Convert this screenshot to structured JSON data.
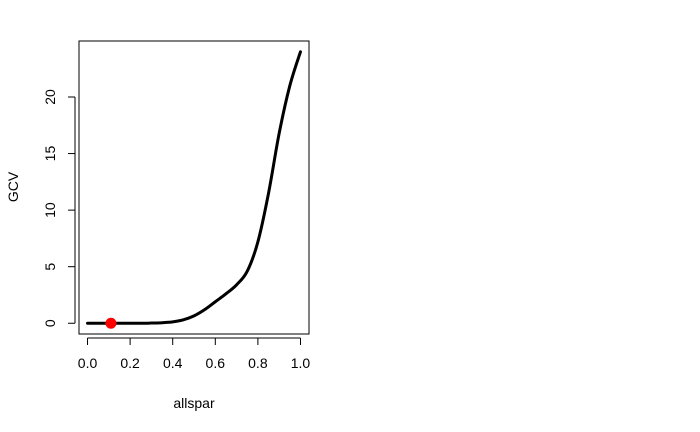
{
  "chart_data": {
    "type": "line",
    "title": "",
    "xlabel": "allspar",
    "ylabel": "GCV",
    "xlim": [
      -0.04,
      1.04
    ],
    "ylim": [
      -0.95,
      24.95
    ],
    "x_ticks": [
      0.0,
      0.2,
      0.4,
      0.6,
      0.8,
      1.0
    ],
    "x_tick_labels": [
      "0.0",
      "0.2",
      "0.4",
      "0.6",
      "0.8",
      "1.0"
    ],
    "y_ticks": [
      0,
      5,
      10,
      15,
      20
    ],
    "y_tick_labels": [
      "0",
      "5",
      "10",
      "15",
      "20"
    ],
    "grid": false,
    "legend": "none",
    "series": [
      {
        "color": "#000000",
        "x": [
          0.0,
          0.05,
          0.1,
          0.15,
          0.2,
          0.25,
          0.3,
          0.35,
          0.4,
          0.45,
          0.5,
          0.55,
          0.6,
          0.65,
          0.7,
          0.75,
          0.8,
          0.85,
          0.9,
          0.95,
          1.0
        ],
        "y": [
          0.0,
          0.0,
          0.0,
          0.0,
          0.0,
          0.0,
          0.02,
          0.05,
          0.12,
          0.3,
          0.65,
          1.2,
          1.9,
          2.6,
          3.4,
          4.6,
          7.2,
          11.5,
          16.8,
          21.0,
          24.0
        ]
      }
    ],
    "highlight_point": {
      "x": 0.11,
      "y": 0.0,
      "color": "#ff0000"
    }
  }
}
